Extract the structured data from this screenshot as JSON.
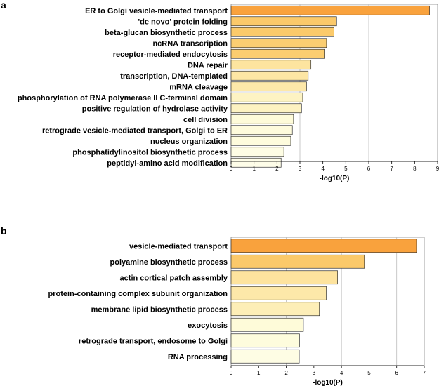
{
  "chart_data": [
    {
      "panel": "a",
      "type": "bar",
      "orientation": "horizontal",
      "xlabel": "-log10(P)",
      "ylabel": "",
      "xlim": [
        0,
        9
      ],
      "xticks": [
        0,
        1,
        2,
        3,
        4,
        5,
        6,
        7,
        8,
        9
      ],
      "grid": "vertical lines at 3, 6",
      "categories": [
        "ER to Golgi vesicle-mediated transport",
        "'de novo' protein folding",
        "beta-glucan biosynthetic process",
        "ncRNA transcription",
        "receptor-mediated endocytosis",
        "DNA repair",
        "transcription, DNA-templated",
        "mRNA cleavage",
        "phosphorylation of RNA polymerase II C-terminal domain",
        "positive regulation of hydrolase activity",
        "cell division",
        "retrograde vesicle-mediated transport, Golgi to ER",
        "nucleus organization",
        "phosphatidylinositol biosynthetic process",
        "peptidyl-amino acid modification"
      ],
      "values": [
        8.65,
        4.6,
        4.48,
        4.16,
        4.06,
        3.48,
        3.36,
        3.29,
        3.12,
        3.07,
        2.72,
        2.67,
        2.6,
        2.3,
        2.18
      ],
      "colors": [
        "#f9a23d",
        "#fbc96a",
        "#fbca6b",
        "#fbce72",
        "#fbcd70",
        "#fde49f",
        "#fde6a4",
        "#fde8a9",
        "#fdf3c3",
        "#fdf2c1",
        "#fefbd9",
        "#fefbdc",
        "#fefcdd",
        "#fefde4",
        "#fefde8"
      ]
    },
    {
      "panel": "b",
      "type": "bar",
      "orientation": "horizontal",
      "xlabel": "-log10(P)",
      "ylabel": "",
      "xlim": [
        0,
        7
      ],
      "xticks": [
        0,
        1,
        2,
        3,
        4,
        5,
        6,
        7
      ],
      "grid": "vertical lines at 2, 4, 6",
      "categories": [
        "vesicle-mediated transport",
        "polyamine biosynthetic process",
        "actin cortical patch assembly",
        "protein-containing complex subunit organization",
        "membrane lipid biosynthetic process",
        "exocytosis",
        "retrograde transport, endosome to Golgi",
        "RNA processing"
      ],
      "values": [
        6.72,
        4.83,
        3.86,
        3.45,
        3.2,
        2.62,
        2.48,
        2.47
      ],
      "colors": [
        "#f9a23d",
        "#fbc96a",
        "#fde39e",
        "#fde8a9",
        "#fdeeb7",
        "#fefbd9",
        "#fefcdd",
        "#fefde4"
      ]
    }
  ]
}
